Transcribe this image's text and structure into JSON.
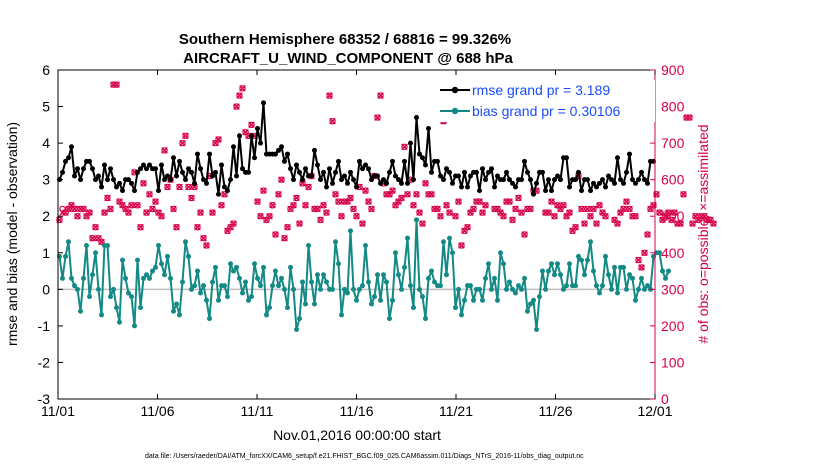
{
  "chart_data": {
    "type": "line",
    "title": "Southern Hemisphere 68352 / 68816 = 99.326%",
    "subtitle": "AIRCRAFT_U_WIND_COMPONENT @ 688 hPa",
    "xlabel": "Nov.01,2016 00:00:00 start",
    "ylabel": "rmse and bias (model - observation)",
    "ylabel_right": "# of obs: o=possible; ×=assimilated",
    "x_ticks": [
      "11/01",
      "11/06",
      "11/11",
      "11/16",
      "11/21",
      "11/26",
      "12/01"
    ],
    "ylim": [
      -3,
      6
    ],
    "y_ticks": [
      "-3",
      "-2",
      "-1",
      "0",
      "1",
      "2",
      "3",
      "4",
      "5",
      "6"
    ],
    "ylim_right": [
      0,
      900
    ],
    "y_ticks_right": [
      "0",
      "100",
      "200",
      "300",
      "400",
      "500",
      "600",
      "700",
      "800",
      "900"
    ],
    "legend_placement": "top-right",
    "colors": {
      "rmse": "#000000",
      "bias": "#138a85",
      "obs": "#d6004b",
      "zero_line": "#bfbfbf",
      "legend_text": "#1a4cff"
    },
    "series": [
      {
        "name": "rmse grand pr = 3.189",
        "axis": "left",
        "values": [
          3.0,
          3.2,
          3.5,
          3.6,
          3.9,
          3.1,
          3.3,
          3.0,
          3.3,
          3.5,
          3.5,
          3.3,
          3.0,
          3.1,
          2.8,
          3.4,
          3.0,
          3.3,
          3.0,
          2.8,
          2.9,
          2.7,
          3.0,
          3.0,
          2.9,
          2.7,
          3.2,
          3.3,
          3.4,
          3.3,
          3.4,
          3.3,
          3.3,
          2.7,
          3.4,
          3.0,
          3.1,
          3.0,
          3.6,
          3.1,
          3.5,
          3.2,
          3.0,
          3.3,
          3.2,
          2.9,
          3.7,
          3.3,
          3.0,
          2.9,
          3.7,
          3.1,
          3.2,
          2.6,
          3.4,
          2.8,
          2.7,
          3.0,
          3.9,
          3.1,
          4.2,
          3.3,
          3.2,
          3.2,
          4.2,
          3.6,
          4.4,
          4.0,
          5.1,
          3.7,
          3.7,
          3.7,
          3.7,
          3.8,
          3.9,
          3.5,
          3.7,
          3.3,
          3.0,
          3.4,
          3.2,
          3.0,
          3.3,
          3.1,
          3.1,
          3.8,
          3.4,
          3.0,
          3.2,
          2.8,
          3.3,
          2.9,
          3.2,
          3.5,
          3.0,
          3.1,
          2.9,
          3.2,
          3.0,
          2.8,
          3.5,
          3.3,
          3.4,
          3.3,
          3.0,
          3.1,
          3.1,
          2.9,
          3.0,
          2.9,
          3.2,
          3.5,
          3.1,
          3.0,
          2.9,
          3.5,
          2.9,
          4.0,
          3.0,
          4.7,
          3.7,
          3.6,
          3.4,
          4.4,
          3.2,
          3.5,
          3.5,
          3.1,
          3.0,
          3.3,
          3.2,
          2.9,
          3.1,
          3.1,
          2.8,
          3.2,
          2.8,
          3.1,
          3.2,
          3.2,
          2.7,
          3.3,
          3.0,
          3.2,
          3.3,
          2.8,
          3.1,
          3.0,
          3.0,
          3.2,
          3.0,
          2.9,
          2.8,
          3.0,
          3.0,
          3.5,
          3.2,
          3.0,
          2.6,
          2.9,
          3.2,
          3.2,
          2.7,
          3.0,
          2.7,
          3.0,
          3.1,
          3.0,
          3.6,
          3.6,
          2.8,
          3.0,
          3.0,
          3.2,
          2.7,
          3.0,
          3.0,
          2.7,
          2.9,
          2.8,
          2.9,
          3.0,
          2.8,
          3.1,
          3.0,
          2.9,
          3.6,
          3.0,
          2.9,
          3.2,
          3.7,
          3.0,
          2.9,
          3.0,
          3.2,
          3.0,
          2.9,
          3.5,
          3.5
        ]
      },
      {
        "name": "bias grand pr = 0.30106",
        "axis": "left",
        "values": [
          0.9,
          0.3,
          0.9,
          1.3,
          0.3,
          0.1,
          0.0,
          -0.6,
          0.3,
          1.2,
          -0.2,
          0.4,
          1.0,
          0.0,
          -0.7,
          1.2,
          1.2,
          -0.2,
          0.0,
          -0.5,
          -0.9,
          0.8,
          0.3,
          -0.1,
          -0.2,
          -1.0,
          0.8,
          -0.5,
          0.3,
          0.4,
          0.3,
          0.5,
          0.6,
          1.2,
          0.7,
          0.4,
          0.9,
          0.3,
          -0.6,
          -0.4,
          -0.7,
          0.2,
          1.3,
          0.9,
          0.0,
          0.1,
          0.5,
          -0.1,
          0.1,
          -0.3,
          -0.8,
          0.2,
          0.6,
          -0.3,
          0.1,
          0.1,
          -0.2,
          0.7,
          0.5,
          0.6,
          0.3,
          -0.1,
          0.2,
          -0.3,
          -0.2,
          0.7,
          0.3,
          0.1,
          0.6,
          -0.7,
          -0.5,
          0.1,
          0.5,
          0.1,
          0.3,
          0.0,
          -0.5,
          0.6,
          0.0,
          -1.1,
          -0.8,
          0.2,
          -0.4,
          1.2,
          0.2,
          -0.4,
          0.4,
          0.0,
          0.4,
          0.2,
          0.0,
          0.0,
          1.3,
          0.7,
          -0.7,
          0.0,
          -0.1,
          1.6,
          0.0,
          -0.3,
          0.0,
          0.1,
          1.2,
          0.2,
          -0.4,
          -0.2,
          0.4,
          -0.3,
          0.4,
          0.2,
          -0.8,
          -0.3,
          1.0,
          0.4,
          0.0,
          0.6,
          1.4,
          0.1,
          -0.5,
          1.9,
          0.0,
          -0.2,
          -0.8,
          0.3,
          0.5,
          0.2,
          0.1,
          0.1,
          1.3,
          0.4,
          1.4,
          1.0,
          -0.5,
          0.0,
          -0.7,
          -0.3,
          0.1,
          0.1,
          -0.3,
          0.0,
          0.0,
          -0.3,
          0.3,
          0.7,
          0.0,
          0.3,
          -0.3,
          1.0,
          0.7,
          0.0,
          0.2,
          0.0,
          -0.1,
          0.1,
          0.0,
          0.3,
          -0.6,
          -0.4,
          -0.3,
          -1.1,
          -0.2,
          0.5,
          0.0,
          0.5,
          0.7,
          0.4,
          0.7,
          0.4,
          0.0,
          0.1,
          0.7,
          0.1,
          0.1,
          0.9,
          0.8,
          0.4,
          0.8,
          1.3,
          0.5,
          0.1,
          -0.1,
          0.1,
          0.9,
          0.4,
          0.0,
          0.6,
          -0.1,
          0.6,
          0.6,
          0.0,
          0.4,
          0.3,
          -0.3,
          0.0,
          0.3,
          0.0,
          0.1,
          0.0,
          0.9,
          1.0,
          1.0,
          0.5,
          0.3,
          0.5
        ]
      },
      {
        "name": "obs possible",
        "axis": "right",
        "values": [
          490,
          520,
          510,
          520,
          530,
          520,
          500,
          520,
          520,
          500,
          510,
          440,
          470,
          440,
          430,
          510,
          550,
          520,
          860,
          860,
          540,
          530,
          520,
          510,
          530,
          620,
          530,
          470,
          590,
          510,
          560,
          520,
          540,
          510,
          500,
          680,
          580,
          600,
          520,
          470,
          580,
          700,
          720,
          580,
          550,
          580,
          470,
          510,
          440,
          420,
          610,
          510,
          700,
          710,
          530,
          560,
          460,
          470,
          480,
          800,
          830,
          850,
          730,
          720,
          750,
          720,
          540,
          500,
          570,
          490,
          500,
          530,
          450,
          560,
          600,
          440,
          470,
          520,
          530,
          550,
          480,
          590,
          530,
          580,
          610,
          520,
          520,
          490,
          530,
          510,
          830,
          760,
          560,
          540,
          500,
          540,
          540,
          550,
          520,
          500,
          580,
          480,
          570,
          540,
          520,
          610,
          770,
          830,
          590,
          560,
          560,
          570,
          530,
          540,
          550,
          690,
          560,
          600,
          530,
          560,
          510,
          480,
          590,
          560,
          560,
          520,
          520,
          500,
          760,
          530,
          510,
          780,
          500,
          540,
          420,
          460,
          470,
          510,
          520,
          540,
          540,
          510,
          530,
          790,
          790,
          520,
          520,
          510,
          500,
          540,
          540,
          490,
          520,
          550,
          510,
          450,
          520,
          520,
          570,
          570,
          820,
          780,
          510,
          510,
          540,
          500,
          530,
          520,
          530,
          500,
          510,
          460,
          470,
          610,
          520,
          480,
          520,
          500,
          520,
          480,
          530,
          510,
          500,
          860,
          800,
          490,
          480,
          510,
          520,
          540,
          520,
          500,
          500,
          380,
          360,
          400,
          450,
          520,
          530,
          560,
          510,
          490,
          500,
          510,
          490,
          510,
          480,
          480,
          560,
          770,
          770,
          480,
          500,
          490,
          500,
          500,
          490,
          490,
          480
        ]
      },
      {
        "name": "obs assimilated",
        "axis": "right",
        "values": [
          490,
          510,
          510,
          520,
          530,
          520,
          500,
          520,
          520,
          500,
          510,
          440,
          470,
          440,
          430,
          510,
          550,
          520,
          860,
          860,
          540,
          530,
          520,
          510,
          530,
          620,
          530,
          470,
          590,
          510,
          560,
          520,
          540,
          510,
          500,
          680,
          580,
          600,
          520,
          470,
          580,
          700,
          720,
          580,
          550,
          580,
          470,
          510,
          440,
          420,
          610,
          510,
          700,
          710,
          530,
          560,
          460,
          470,
          480,
          800,
          830,
          850,
          730,
          720,
          750,
          720,
          540,
          500,
          570,
          490,
          500,
          530,
          450,
          560,
          600,
          440,
          470,
          520,
          530,
          550,
          480,
          590,
          530,
          580,
          610,
          520,
          520,
          490,
          530,
          510,
          830,
          760,
          560,
          540,
          500,
          540,
          540,
          550,
          520,
          500,
          580,
          480,
          570,
          540,
          520,
          610,
          770,
          830,
          590,
          560,
          560,
          570,
          530,
          540,
          550,
          690,
          560,
          600,
          530,
          560,
          510,
          480,
          590,
          560,
          560,
          520,
          520,
          500,
          760,
          530,
          510,
          780,
          500,
          540,
          420,
          460,
          470,
          510,
          520,
          540,
          540,
          510,
          530,
          790,
          790,
          520,
          520,
          510,
          500,
          540,
          540,
          490,
          520,
          550,
          510,
          450,
          520,
          520,
          570,
          570,
          820,
          780,
          510,
          510,
          540,
          500,
          530,
          520,
          530,
          500,
          510,
          460,
          470,
          610,
          520,
          480,
          520,
          500,
          520,
          480,
          530,
          510,
          500,
          860,
          800,
          490,
          480,
          510,
          520,
          540,
          520,
          500,
          500,
          380,
          360,
          400,
          450,
          520,
          530,
          560,
          510,
          490,
          500,
          510,
          490,
          510,
          480,
          480,
          560,
          770,
          770,
          480,
          500,
          490,
          500,
          500,
          490,
          490,
          480
        ]
      }
    ]
  },
  "footer": {
    "text": "data file: /Users/raeder/DAI/ATM_forcXX/CAM6_setup/f.e21.FHIST_BGC.f09_025.CAM6assim.011/Diags_NTrS_2016-11/obs_diag_output.nc"
  }
}
